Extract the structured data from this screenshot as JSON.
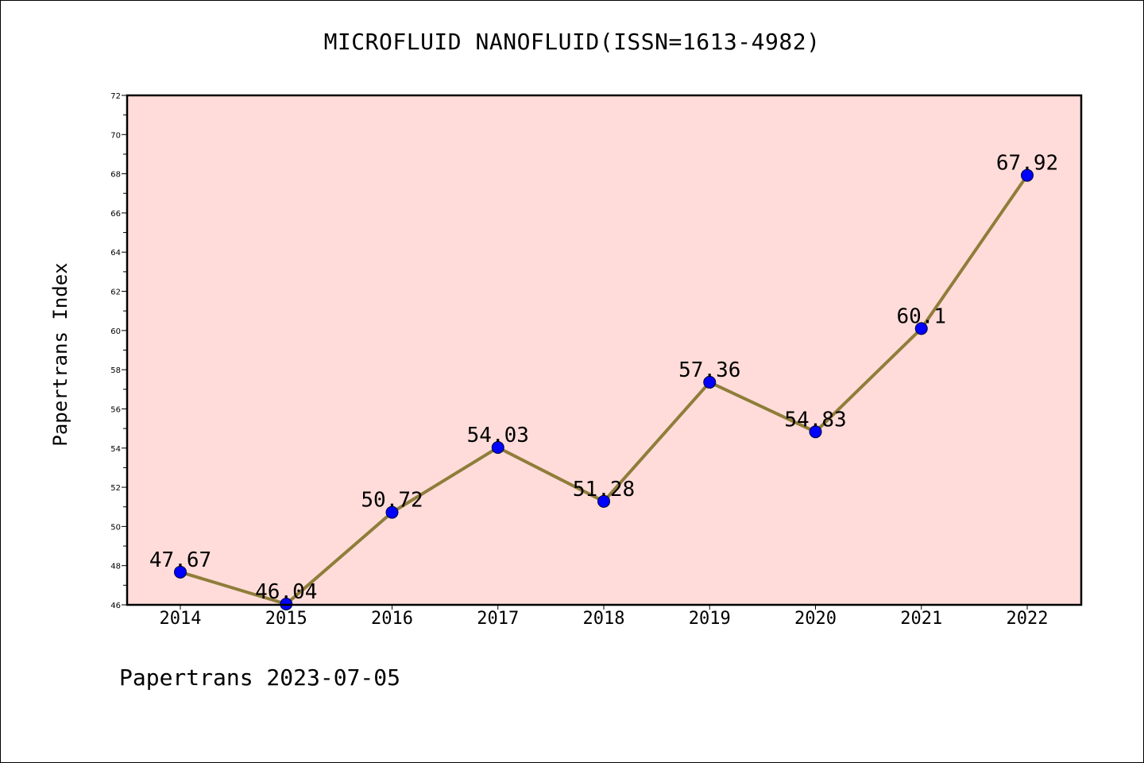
{
  "chart_data": {
    "type": "line",
    "title": "MICROFLUID NANOFLUID(ISSN=1613-4982)",
    "xlabel": "",
    "ylabel": "Papertrans Index",
    "categories": [
      "2014",
      "2015",
      "2016",
      "2017",
      "2018",
      "2019",
      "2020",
      "2021",
      "2022"
    ],
    "series": [
      {
        "values": [
          47.67,
          46.04,
          50.72,
          54.03,
          51.28,
          57.36,
          54.83,
          60.1,
          67.92
        ],
        "labels": [
          "47.67",
          "46.04",
          "50.72",
          "54.03",
          "51.28",
          "57.36",
          "54.83",
          "60.1",
          "67.92"
        ]
      }
    ],
    "ylim": [
      46,
      72
    ],
    "yticks": [
      46,
      48,
      50,
      52,
      54,
      56,
      58,
      60,
      62,
      64,
      66,
      68,
      70,
      72
    ],
    "grid": false,
    "legend": "none",
    "colors": {
      "plot_background": "#ffdcd9",
      "line": "#8f7d3a",
      "marker": "#0000ff"
    }
  },
  "footer": {
    "text": "Papertrans 2023-07-05"
  }
}
